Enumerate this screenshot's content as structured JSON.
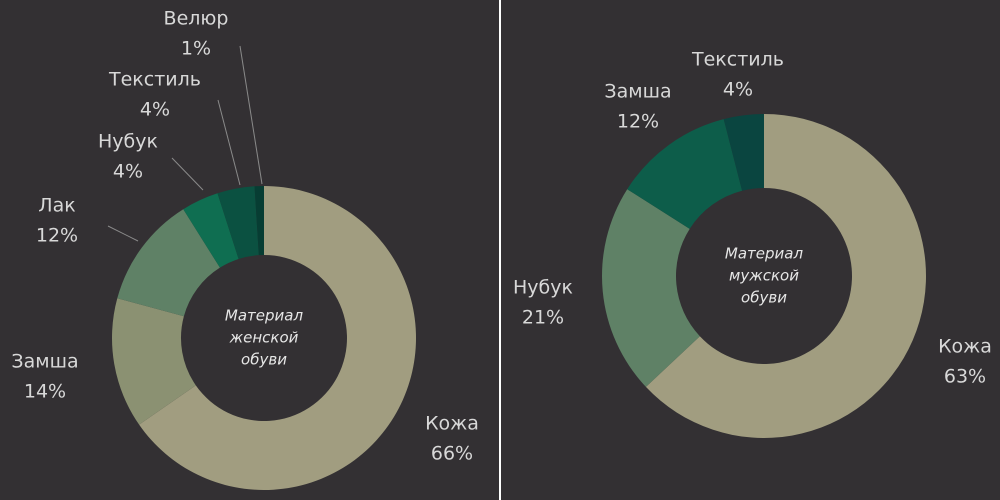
{
  "chart_data": [
    {
      "type": "donut",
      "center_label": [
        "Материал",
        "женской",
        "обуви"
      ],
      "categories": [
        "Кожа",
        "Замша",
        "Лак",
        "Нубук",
        "Текстиль",
        "Велюр"
      ],
      "values": [
        66,
        14,
        12,
        4,
        4,
        1
      ],
      "value_labels": [
        "66%",
        "14%",
        "12%",
        "4%",
        "4%",
        "1%"
      ],
      "colors": [
        "#a19d80",
        "#8b9172",
        "#5f8166",
        "#0f6e51",
        "#0b5141",
        "#073d33"
      ]
    },
    {
      "type": "donut",
      "center_label": [
        "Материал",
        "мужской",
        "обуви"
      ],
      "categories": [
        "Кожа",
        "Нубук",
        "Замша",
        "Текстиль"
      ],
      "values": [
        63,
        21,
        12,
        4
      ],
      "value_labels": [
        "63%",
        "21%",
        "12%",
        "4%"
      ],
      "colors": [
        "#a19d80",
        "#5f8166",
        "#0d5d4a",
        "#0a4540"
      ]
    }
  ]
}
